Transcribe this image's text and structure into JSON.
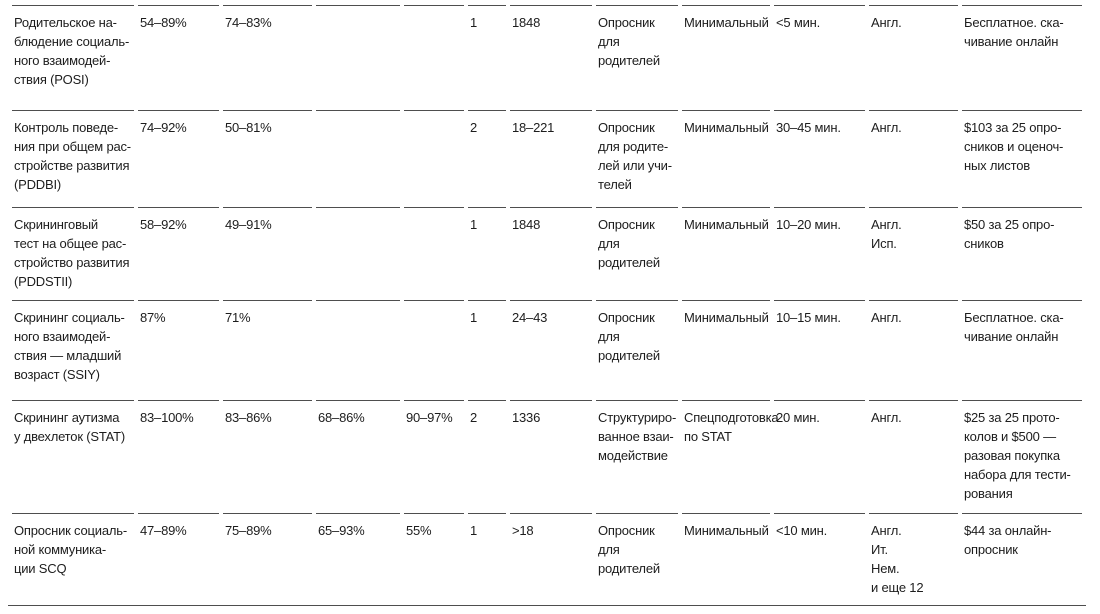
{
  "colors": {
    "text": "#1d1d1d",
    "rule": "#4e4e4e",
    "background": "#ffffff"
  },
  "table": {
    "rows": [
      [
        "Родительское на-\nблюдение социаль-\nного взаимодей-\nствия (POSI)",
        "54–89%",
        "74–83%",
        "",
        "",
        "1",
        "1848",
        "Опросник для\nродителей",
        "Минимальный",
        "<5 мин.",
        "Англ.",
        "Бесплатное. ска-\nчивание онлайн"
      ],
      [
        "Контроль поведе-\nния при общем рас-\nстройстве развития\n(PDDBI)",
        "74–92%",
        "50–81%",
        "",
        "",
        "2",
        "18–221",
        "Опросник\nдля родите-\nлей или учи-\nтелей",
        "Минимальный",
        "30–45 мин.",
        "Англ.",
        "$103 за 25 опро-\nсников и оценоч-\nных листов"
      ],
      [
        "Скрининговый\nтест на общее рас-\nстройство развития\n(PDDSTII)",
        "58–92%",
        "49–91%",
        "",
        "",
        "1",
        "1848",
        "Опросник для\nродителей",
        "Минимальный",
        "10–20 мин.",
        "Англ.\nИсп.",
        "$50 за 25 опро-\nсников"
      ],
      [
        "Скрининг социаль-\nного взаимодей-\nствия — младший\nвозраст (SSIY)",
        "87%",
        "71%",
        "",
        "",
        "1",
        "24–43",
        "Опросник для\nродителей",
        "Минимальный",
        "10–15 мин.",
        "Англ.",
        "Бесплатное. ска-\nчивание онлайн"
      ],
      [
        "Скрининг аутизма\nу двехлеток (STAT)",
        "83–100%",
        "83–86%",
        "68–86%",
        "90–97%",
        "2",
        "1336",
        "Структуриро-\nванное взаи-\nмодействие",
        "Спецподготовка\nпо STAT",
        "20 мин.",
        "Англ.",
        "$25 за 25 прото-\nколов и $500 —\nразовая покупка\nнабора для тести-\nрования"
      ],
      [
        "Опросник социаль-\nной коммуника-\nции SCQ",
        "47–89%",
        "75–89%",
        "65–93%",
        "55%",
        "1",
        ">18",
        "Опросник для\nродителей",
        "Минимальный",
        "<10 мин.",
        "Англ.\nИт.\nНем.\nи еще 12",
        "$44 за онлайн-\nопросник"
      ]
    ]
  }
}
